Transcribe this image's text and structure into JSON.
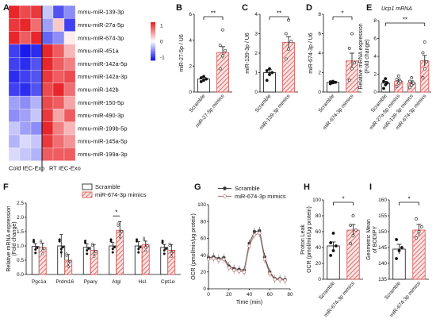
{
  "colors": {
    "high": "#e8262b",
    "mid": "#ffffff",
    "low": "#1a1aee",
    "bar_hatch": "#d9534f",
    "line_scramble": "#444444",
    "line_mimic": "#b07a7a"
  },
  "panels": {
    "A": "A",
    "B": "B",
    "C": "C",
    "D": "D",
    "E": "E",
    "F": "F",
    "G": "G",
    "H": "H",
    "I": "I"
  },
  "chart_data": [
    {
      "panel": "A",
      "type": "heatmap",
      "rows": [
        "mmu-miR-139-3p",
        "mmu-miR-27a-5p",
        "mmu-miR-674-3p",
        "mmu-miR-451a",
        "mmu-miR-142a-5p",
        "mmu-miR-142a-3p",
        "mmu-miR-142b",
        "mmu-miR-150-5p",
        "mmu-miR-490-3p",
        "mmu-miR-199b-5p",
        "mmu-miR-145a-5p",
        "mmu-miR-199a-3p"
      ],
      "groups": [
        "Cold IEC-Exo",
        "RT IEC-Exo"
      ],
      "n_cols_per_group": 3,
      "colorbar_ticks": [
        "1",
        "0",
        "-1"
      ],
      "values": [
        [
          1.2,
          1.0,
          1.1,
          -0.3,
          -0.9,
          -0.6
        ],
        [
          1.1,
          1.3,
          0.8,
          -0.5,
          0.3,
          -1.0
        ],
        [
          1.2,
          0.9,
          1.2,
          -0.8,
          -0.6,
          0.1
        ],
        [
          -1.0,
          -1.2,
          -1.1,
          1.2,
          0.9,
          0.4
        ],
        [
          -1.0,
          -1.1,
          -0.9,
          1.2,
          0.9,
          0.7
        ],
        [
          -1.1,
          -1.0,
          -0.9,
          1.1,
          0.9,
          1.0
        ],
        [
          -1.0,
          -1.1,
          -0.9,
          1.0,
          1.2,
          0.8
        ],
        [
          -0.5,
          -0.6,
          -0.4,
          1.0,
          0.9,
          0.5
        ],
        [
          -0.6,
          -0.5,
          -0.3,
          1.1,
          0.5,
          0.9
        ],
        [
          -0.3,
          -0.5,
          -0.6,
          1.2,
          0.7,
          0.4
        ],
        [
          -0.4,
          -0.2,
          -0.3,
          1.1,
          0.8,
          0.6
        ],
        [
          -0.2,
          -0.3,
          -0.4,
          0.9,
          0.9,
          0.9
        ]
      ]
    },
    {
      "panel": "B",
      "type": "bar",
      "categories": [
        "Scramble",
        "miR-27-5p mimics"
      ],
      "values": [
        1.0,
        3.05
      ],
      "errors": [
        0.12,
        0.45
      ],
      "points": [
        [
          0.8,
          0.9,
          1.0,
          1.1,
          1.2
        ],
        [
          1.8,
          2.8,
          3.2,
          3.6,
          4.8
        ]
      ],
      "ylabel": "miR-27-5p / U6",
      "ylim": [
        0,
        6
      ],
      "yticks": [
        "0",
        "2",
        "4",
        "6"
      ],
      "sig": "**"
    },
    {
      "panel": "C",
      "type": "bar",
      "categories": [
        "Scramble",
        "miR-139-3p mimics"
      ],
      "values": [
        1.0,
        2.55
      ],
      "errors": [
        0.15,
        0.3
      ],
      "points": [
        [
          0.6,
          0.9,
          1.0,
          1.1,
          1.2
        ],
        [
          1.7,
          2.2,
          2.6,
          3.0,
          3.7
        ]
      ],
      "ylabel": "miR-139-3p / U6",
      "ylim": [
        0,
        4
      ],
      "yticks": [
        "0",
        "1",
        "2",
        "3",
        "4"
      ],
      "sig": "**"
    },
    {
      "panel": "D",
      "type": "bar",
      "categories": [
        "Scramble",
        "miR-674-3p mimics"
      ],
      "values": [
        1.0,
        3.2
      ],
      "errors": [
        0.1,
        0.8
      ],
      "points": [
        [
          0.85,
          0.95,
          1.0,
          1.05,
          1.1
        ],
        [
          1.2,
          2.4,
          3.0,
          4.5,
          6.0
        ]
      ],
      "ylabel": "miR-674-3p / U6",
      "ylim": [
        0,
        8
      ],
      "yticks": [
        "0",
        "2",
        "4",
        "6",
        "8"
      ],
      "sig": "*"
    },
    {
      "panel": "E",
      "type": "bar",
      "title": "Ucp1 mRNA",
      "categories": [
        "Scramble",
        "miR-27a-5p mimics",
        "miR-139-3p mimics",
        "miR-674-3p mimics"
      ],
      "values": [
        1.0,
        1.2,
        1.0,
        3.5
      ],
      "errors": [
        0.2,
        0.25,
        0.25,
        0.6
      ],
      "points": [
        [
          0.4,
          0.8,
          1.0,
          1.2,
          1.5
        ],
        [
          0.6,
          1.0,
          1.2,
          1.4,
          1.8
        ],
        [
          0.5,
          0.8,
          1.0,
          1.2,
          1.6
        ],
        [
          1.6,
          2.6,
          3.4,
          4.4,
          5.6
        ]
      ],
      "ylabel": "Relative mRNA expression (Fold change)",
      "ylim": [
        0,
        8
      ],
      "yticks": [
        "0",
        "2",
        "4",
        "6",
        "8"
      ],
      "sig": "**"
    },
    {
      "panel": "F",
      "type": "bar",
      "categories": [
        "Pgc1α",
        "Prdm16",
        "Pparγ",
        "Atgl",
        "Hsl",
        "Cpt1α"
      ],
      "series": [
        {
          "name": "Scramble",
          "values": [
            0.98,
            1.0,
            0.95,
            1.0,
            1.0,
            0.95
          ],
          "errors": [
            0.1,
            0.4,
            0.12,
            0.12,
            0.15,
            0.1
          ]
        },
        {
          "name": "miR-674-3p mimics",
          "values": [
            0.95,
            0.5,
            0.85,
            1.55,
            1.05,
            0.85
          ],
          "errors": [
            0.15,
            0.2,
            0.2,
            0.3,
            0.12,
            0.2
          ]
        }
      ],
      "ylabel": "Relative mRNA expression (Fold change)",
      "ylim": [
        0,
        2.5
      ],
      "yticks": [
        "0.0",
        "0.5",
        "1.0",
        "1.5",
        "2.0",
        "2.5"
      ],
      "sig": "*",
      "sig_category": "Atgl"
    },
    {
      "panel": "G",
      "type": "line",
      "x": [
        0,
        5,
        10,
        15,
        20,
        25,
        30,
        35,
        40,
        45,
        50,
        55,
        60,
        65,
        70,
        75
      ],
      "series": [
        {
          "name": "Scramble",
          "values": [
            37,
            38,
            36,
            37,
            27,
            24,
            23,
            22,
            54,
            68,
            69,
            38,
            20,
            12,
            12,
            11
          ]
        },
        {
          "name": "miR-674-3p mimics",
          "values": [
            35,
            36,
            34,
            35,
            25,
            22,
            21,
            20,
            51,
            64,
            66,
            35,
            18,
            11,
            11,
            10
          ]
        }
      ],
      "xlabel": "Time (min)",
      "ylabel": "OCR (pmol/min/μg protein)",
      "xlim": [
        0,
        80
      ],
      "ylim": [
        0,
        100
      ],
      "xticks": [
        "0",
        "20",
        "40",
        "60",
        "80"
      ],
      "yticks": [
        "0",
        "20",
        "40",
        "60",
        "80",
        "100"
      ]
    },
    {
      "panel": "H",
      "type": "bar",
      "categories": [
        "Scramble",
        "miR-674-3p mimics"
      ],
      "values": [
        42,
        62
      ],
      "errors": [
        5,
        7
      ],
      "points": [
        [
          30,
          36,
          42,
          46,
          58
        ],
        [
          45,
          55,
          62,
          68,
          80
        ]
      ],
      "ylabel": "Proton Leak OCR (pmol/min/μg protein)",
      "ylim": [
        0,
        100
      ],
      "yticks": [
        "0",
        "20",
        "40",
        "60",
        "80",
        "100"
      ],
      "sig": "*"
    },
    {
      "panel": "I",
      "type": "bar",
      "categories": [
        "Scramble",
        "miR-674-3p mimics"
      ],
      "values": [
        144.5,
        150.5
      ],
      "errors": [
        1.5,
        1.8
      ],
      "points": [
        [
          141.5,
          144,
          145,
          147.5
        ],
        [
          148,
          150,
          151.5,
          154
        ]
      ],
      "ylabel": "Geometric Mean of BODIPY",
      "ylim": [
        135,
        160
      ],
      "yticks": [
        "135",
        "140",
        "145",
        "150",
        "155",
        "160"
      ],
      "sig": "*"
    }
  ]
}
